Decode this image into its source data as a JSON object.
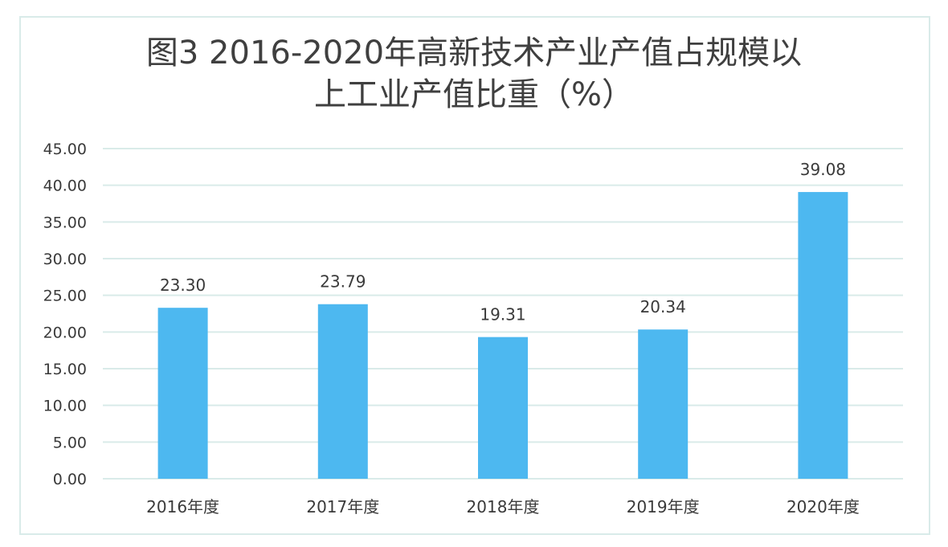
{
  "chart_data": {
    "type": "bar",
    "title_line1": "图3   2016-2020年高新技术产业产值占规模以",
    "title_line2": "上工业产值比重（%）",
    "xlabel": "",
    "ylabel": "",
    "categories": [
      "2016年度",
      "2017年度",
      "2018年度",
      "2019年度",
      "2020年度"
    ],
    "values": [
      23.3,
      23.79,
      19.31,
      20.34,
      39.08
    ],
    "value_labels": [
      "23.30",
      "23.79",
      "19.31",
      "20.34",
      "39.08"
    ],
    "y_ticks": [
      "0.00",
      "5.00",
      "10.00",
      "15.00",
      "20.00",
      "25.00",
      "30.00",
      "35.00",
      "40.00",
      "45.00"
    ],
    "ylim": [
      0,
      45
    ],
    "grid": true,
    "legend": "none",
    "bar_color": "#4db8f0",
    "grid_color": "#d9ebe9"
  }
}
